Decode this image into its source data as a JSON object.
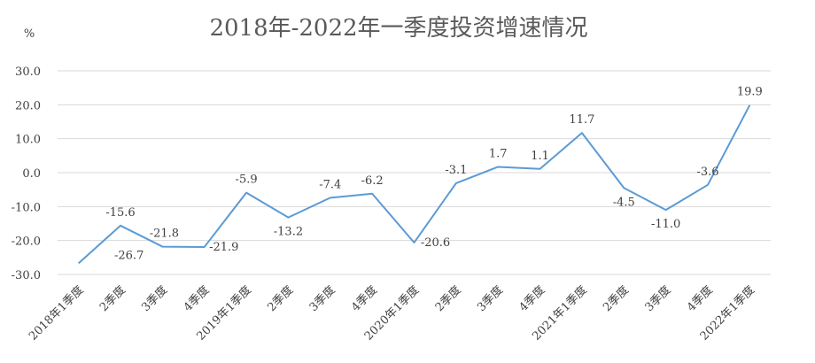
{
  "chart_data": {
    "type": "line",
    "title": "2018年-2022年一季度投资增速情况",
    "ylabel": "%",
    "xlabel": "",
    "ylim": [
      -30,
      30
    ],
    "yticks": [
      "30.0",
      "20.0",
      "10.0",
      "0.0",
      "-10.0",
      "-20.0",
      "-30.0"
    ],
    "ytick_values": [
      30,
      20,
      10,
      0,
      -10,
      -20,
      -30
    ],
    "grid": true,
    "legend": "none",
    "categories": [
      "2018年1季度",
      "2季度",
      "3季度",
      "4季度",
      "2019年1季度",
      "2季度",
      "3季度",
      "4季度",
      "2020年1季度",
      "2季度",
      "3季度",
      "4季度",
      "2021年1季度",
      "2季度",
      "3季度",
      "4季度",
      "2022年1季度"
    ],
    "series": [
      {
        "values": [
          -26.7,
          -15.6,
          -21.8,
          -21.9,
          -5.9,
          -13.2,
          -7.4,
          -6.2,
          -20.6,
          -3.1,
          1.7,
          1.1,
          11.7,
          -4.5,
          -11.0,
          -3.6,
          19.9
        ],
        "labels": [
          "",
          "-15.6",
          "-21.8",
          "-21.9",
          "-5.9",
          "-13.2",
          "-7.4",
          "-6.2",
          "-20.6",
          "-3.1",
          "1.7",
          "1.1",
          "11.7",
          "-4.5",
          "-11.0",
          "-3.6",
          "19.9"
        ],
        "extra_labels": [
          "-26.7"
        ],
        "color": "#5b9bd5"
      }
    ],
    "colors": {
      "grid": "#d9d9d9",
      "axis_text": "#404040",
      "title": "#595959",
      "line": "#5b9bd5"
    }
  }
}
